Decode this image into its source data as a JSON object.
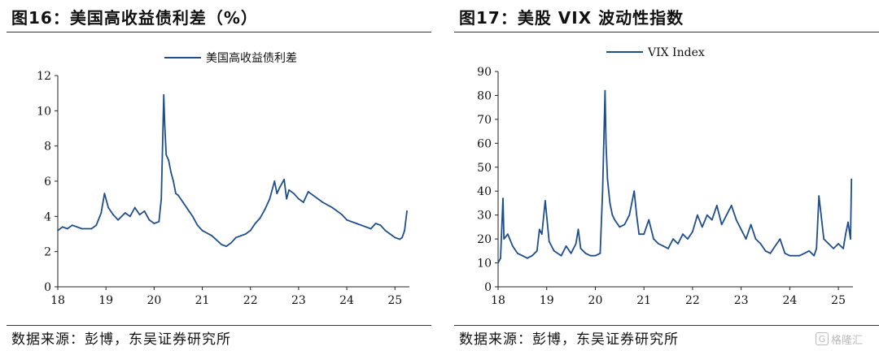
{
  "figures": [
    {
      "title": "图16：美国高收益债利差（%）",
      "source": "数据来源：彭博，东吴证券研究所"
    },
    {
      "title": "图17：美股 VIX 波动性指数",
      "source": "数据来源：彭博，东吴证券研究所"
    }
  ],
  "watermark": {
    "text": "格隆汇"
  },
  "chart_data": [
    {
      "type": "line",
      "title": "",
      "xlabel": "",
      "ylabel": "",
      "xlim": [
        2018.0,
        2025.3
      ],
      "ylim": [
        0,
        12
      ],
      "yticks": [
        0,
        2,
        4,
        6,
        8,
        10,
        12
      ],
      "xticks": [
        2018,
        2019,
        2020,
        2021,
        2022,
        2023,
        2024,
        2025
      ],
      "xtick_labels": [
        "18",
        "19",
        "20",
        "21",
        "22",
        "23",
        "24",
        "25"
      ],
      "legend_position": "top-center",
      "grid": false,
      "color": "#1f4e8c",
      "series": [
        {
          "name": "美国高收益债利差",
          "x": [
            2018.0,
            2018.1,
            2018.2,
            2018.3,
            2018.5,
            2018.7,
            2018.8,
            2018.9,
            2018.97,
            2019.05,
            2019.15,
            2019.25,
            2019.4,
            2019.5,
            2019.6,
            2019.7,
            2019.8,
            2019.9,
            2020.0,
            2020.1,
            2020.15,
            2020.2,
            2020.22,
            2020.25,
            2020.3,
            2020.35,
            2020.4,
            2020.45,
            2020.5,
            2020.6,
            2020.7,
            2020.8,
            2020.9,
            2021.0,
            2021.2,
            2021.4,
            2021.5,
            2021.6,
            2021.7,
            2021.8,
            2021.9,
            2022.0,
            2022.1,
            2022.2,
            2022.3,
            2022.4,
            2022.5,
            2022.55,
            2022.6,
            2022.7,
            2022.75,
            2022.8,
            2022.9,
            2023.0,
            2023.1,
            2023.2,
            2023.3,
            2023.5,
            2023.7,
            2023.8,
            2023.9,
            2024.0,
            2024.2,
            2024.4,
            2024.5,
            2024.6,
            2024.7,
            2024.8,
            2024.9,
            2025.0,
            2025.1,
            2025.15,
            2025.2,
            2025.25
          ],
          "y": [
            3.2,
            3.4,
            3.3,
            3.5,
            3.3,
            3.3,
            3.5,
            4.2,
            5.3,
            4.5,
            4.1,
            3.8,
            4.2,
            4.0,
            4.5,
            4.1,
            4.3,
            3.8,
            3.6,
            3.7,
            5.0,
            10.9,
            9.2,
            7.5,
            7.2,
            6.5,
            6.0,
            5.3,
            5.2,
            4.8,
            4.4,
            4.0,
            3.5,
            3.2,
            2.9,
            2.4,
            2.3,
            2.5,
            2.8,
            2.9,
            3.0,
            3.2,
            3.6,
            3.9,
            4.4,
            5.0,
            6.0,
            5.3,
            5.6,
            6.1,
            5.0,
            5.5,
            5.3,
            5.0,
            4.8,
            5.4,
            5.2,
            4.8,
            4.5,
            4.3,
            4.1,
            3.8,
            3.6,
            3.4,
            3.3,
            3.6,
            3.5,
            3.2,
            3.0,
            2.8,
            2.7,
            2.8,
            3.2,
            4.3
          ]
        }
      ]
    },
    {
      "type": "line",
      "title": "",
      "xlabel": "",
      "ylabel": "",
      "xlim": [
        2018.0,
        2025.3
      ],
      "ylim": [
        0,
        90
      ],
      "yticks": [
        0,
        10,
        20,
        30,
        40,
        50,
        60,
        70,
        80,
        90
      ],
      "xticks": [
        2018,
        2019,
        2020,
        2021,
        2022,
        2023,
        2024,
        2025
      ],
      "xtick_labels": [
        "18",
        "19",
        "20",
        "21",
        "22",
        "23",
        "24",
        "25"
      ],
      "legend_position": "top-center",
      "grid": false,
      "color": "#1f4e8c",
      "series": [
        {
          "name": "VIX Index",
          "x": [
            2018.0,
            2018.05,
            2018.1,
            2018.12,
            2018.2,
            2018.3,
            2018.4,
            2018.5,
            2018.6,
            2018.7,
            2018.8,
            2018.85,
            2018.9,
            2018.97,
            2019.05,
            2019.15,
            2019.3,
            2019.4,
            2019.5,
            2019.6,
            2019.65,
            2019.7,
            2019.8,
            2019.9,
            2020.0,
            2020.1,
            2020.15,
            2020.2,
            2020.22,
            2020.25,
            2020.3,
            2020.35,
            2020.4,
            2020.5,
            2020.6,
            2020.7,
            2020.8,
            2020.85,
            2020.9,
            2021.0,
            2021.1,
            2021.2,
            2021.3,
            2021.4,
            2021.5,
            2021.6,
            2021.7,
            2021.8,
            2021.9,
            2022.0,
            2022.1,
            2022.2,
            2022.3,
            2022.4,
            2022.5,
            2022.6,
            2022.7,
            2022.8,
            2022.9,
            2023.0,
            2023.1,
            2023.2,
            2023.3,
            2023.4,
            2023.5,
            2023.6,
            2023.7,
            2023.8,
            2023.9,
            2024.0,
            2024.2,
            2024.3,
            2024.4,
            2024.5,
            2024.55,
            2024.6,
            2024.7,
            2024.8,
            2024.9,
            2025.0,
            2025.1,
            2025.15,
            2025.2,
            2025.25,
            2025.27
          ],
          "y": [
            10,
            12,
            37,
            20,
            22,
            17,
            14,
            13,
            12,
            13,
            15,
            24,
            22,
            36,
            19,
            15,
            13,
            17,
            14,
            18,
            24,
            16,
            14,
            13,
            13,
            14,
            40,
            82,
            60,
            45,
            35,
            30,
            28,
            25,
            26,
            30,
            40,
            30,
            22,
            22,
            28,
            20,
            18,
            17,
            16,
            20,
            18,
            22,
            20,
            23,
            30,
            25,
            30,
            28,
            34,
            26,
            30,
            34,
            28,
            24,
            20,
            26,
            20,
            18,
            15,
            14,
            17,
            20,
            14,
            13,
            13,
            14,
            15,
            13,
            16,
            38,
            20,
            18,
            16,
            18,
            16,
            22,
            27,
            20,
            45
          ]
        }
      ]
    }
  ]
}
